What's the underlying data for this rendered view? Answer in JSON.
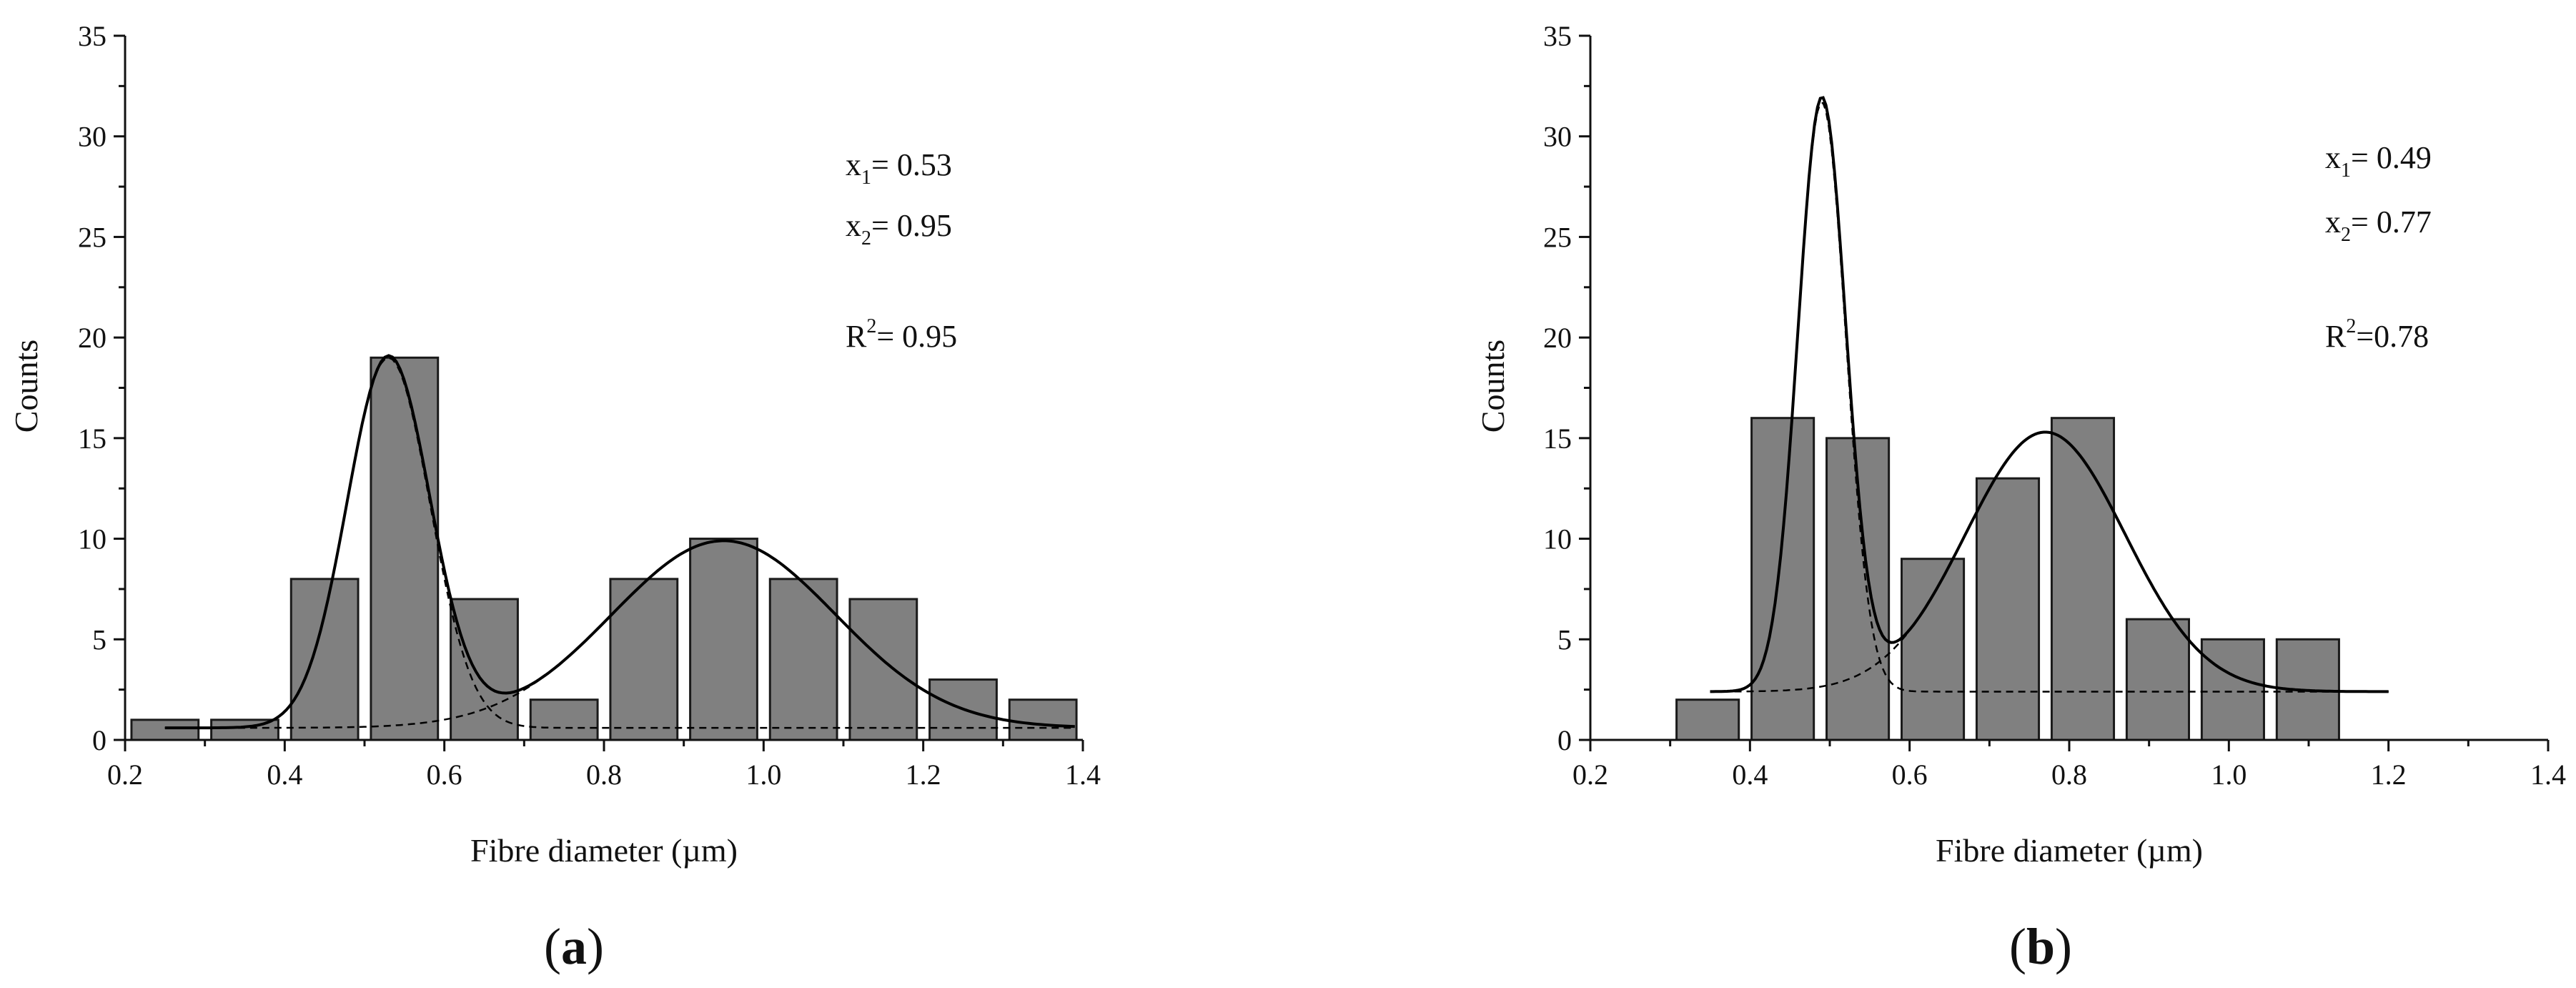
{
  "chart_data": [
    {
      "panel": "(a)",
      "type": "bar",
      "xlabel": "Fibre diameter (µm)",
      "ylabel": "Counts",
      "xlim": [
        0.2,
        1.4
      ],
      "ylim": [
        0,
        35
      ],
      "xticks": [
        "0.2",
        "0.4",
        "0.6",
        "0.8",
        "1.0",
        "1.2",
        "1.4"
      ],
      "yticks": [
        "0",
        "5",
        "10",
        "15",
        "20",
        "25",
        "30",
        "35"
      ],
      "bin_width": 0.1,
      "categories": [
        0.25,
        0.35,
        0.45,
        0.55,
        0.65,
        0.75,
        0.85,
        0.95,
        1.05,
        1.15,
        1.25,
        1.35
      ],
      "values": [
        1,
        1,
        8,
        19,
        7,
        2,
        8,
        10,
        8,
        7,
        3,
        2
      ],
      "fit": {
        "model": "two gaussian peaks on constant baseline",
        "baseline": 0.6,
        "peaks": [
          {
            "center": 0.53,
            "amplitude": 18.4,
            "sigma": 0.052
          },
          {
            "center": 0.95,
            "amplitude": 9.3,
            "sigma": 0.14
          }
        ],
        "x_range": [
          0.25,
          1.39
        ]
      },
      "annotations": {
        "x1_label": "x",
        "x1_sub": "1",
        "x1_value": "= 0.53",
        "x2_label": "x",
        "x2_sub": "2",
        "x2_value": "= 0.95",
        "r2_label": "R",
        "r2_sup": "2",
        "r2_value": "= 0.95"
      },
      "grid": false
    },
    {
      "panel": "(b)",
      "type": "bar",
      "xlabel": "Fibre diameter (µm)",
      "ylabel": "Counts",
      "xlim": [
        0.2,
        1.4
      ],
      "ylim": [
        0,
        35
      ],
      "xticks": [
        "0.2",
        "0.4",
        "0.6",
        "0.8",
        "1.0",
        "1.2",
        "1.4"
      ],
      "yticks": [
        "0",
        "5",
        "10",
        "15",
        "20",
        "25",
        "30",
        "35"
      ],
      "bin_width": 0.094,
      "categories": [
        0.347,
        0.441,
        0.535,
        0.629,
        0.723,
        0.817,
        0.911,
        1.005,
        1.099
      ],
      "values": [
        2,
        16,
        15,
        9,
        13,
        16,
        6,
        5,
        5
      ],
      "fit": {
        "model": "two gaussian peaks on constant baseline",
        "baseline": 2.4,
        "peaks": [
          {
            "center": 0.49,
            "amplitude": 29.3,
            "sigma": 0.03
          },
          {
            "center": 0.77,
            "amplitude": 12.9,
            "sigma": 0.1
          }
        ],
        "x_range": [
          0.35,
          1.2
        ]
      },
      "annotations": {
        "x1_label": "x",
        "x1_sub": "1",
        "x1_value": "= 0.49",
        "x2_label": "x",
        "x2_sub": "2",
        "x2_value": "= 0.77",
        "r2_label": "R",
        "r2_sup": "2",
        "r2_value": "=0.78"
      },
      "grid": false
    }
  ],
  "colors": {
    "bar_fill": "#808080",
    "bar_stroke": "#1a1a1a",
    "axis": "#111111",
    "fit_line": "#000000"
  }
}
